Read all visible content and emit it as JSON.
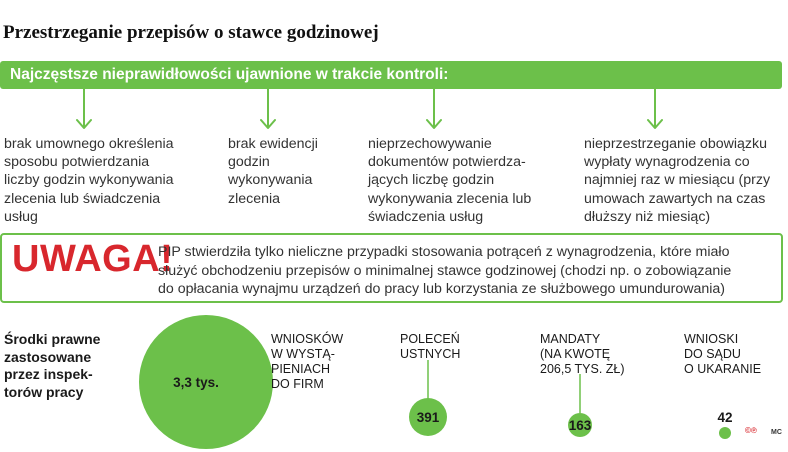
{
  "title": "Przestrzeganie przepisów o stawce godzinowej",
  "banner": "Najczęstsze nieprawidłowości ujawnione w trakcie kontroli:",
  "issues": [
    [
      "brak umownego określenia",
      "sposobu potwierdzania",
      "liczby godzin wykonywania",
      "zlecenia lub świadczenia",
      "usług"
    ],
    [
      "brak ewidencji",
      "godzin",
      "wykonywania",
      "zlecenia"
    ],
    [
      "nieprzechowywanie",
      "dokumentów potwierdza-",
      "jących liczbę godzin",
      "wykonywania zlecenia lub",
      "świadczenia usług"
    ],
    [
      "nieprzestrzeganie obowiązku",
      "wypłaty wynagrodzenia co",
      "najmniej raz w miesiącu (przy",
      "umowach zawartych na czas",
      "dłuższy niż miesiąc)"
    ]
  ],
  "uwaga": {
    "label": "UWAGA!",
    "lines": [
      "PIP stwierdziła tylko nieliczne przypadki stosowania potrąceń z wynagrodzenia, które miało",
      "służyć obchodzeniu przepisów o minimalnej stawce godzinowej (chodzi np. o zobowiązanie",
      "do opłacania wynajmu urządzeń do pracy lub korzystania ze służbowego umundurowania)"
    ]
  },
  "means_label": [
    "Środki prawne",
    "zastosowane",
    "przez inspek-",
    "torów pracy"
  ],
  "measures": [
    {
      "label": [
        "WNIOSKÓW",
        "W WYSTĄ-",
        "PIENIACH",
        "DO FIRM"
      ],
      "value_text": "3,3 tys.",
      "value": 3300
    },
    {
      "label": [
        "POLECEŃ",
        "USTNYCH"
      ],
      "value_text": "391",
      "value": 391
    },
    {
      "label": [
        "MANDATY",
        "(NA KWOTĘ",
        "206,5 TYS. ZŁ)"
      ],
      "value_text": "163",
      "value": 163
    },
    {
      "label": [
        "WNIOSKI",
        "DO SĄDU",
        "O UKARANIE"
      ],
      "value_text": "42",
      "value": 42
    }
  ],
  "colors": {
    "green": "#6cc04a",
    "red": "#d8272d"
  },
  "credit": "©℗",
  "credit_author": "MC"
}
